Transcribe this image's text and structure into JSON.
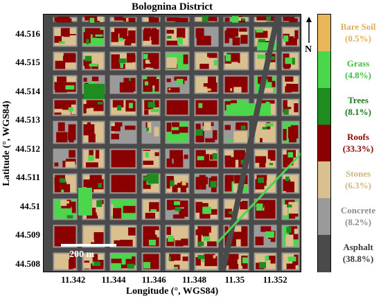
{
  "title": "Bolognina District",
  "xlabel": "Longitude (°, WGS84)",
  "ylabel": "Latitude (°, WGS84)",
  "lon_ticks": [
    "11.342",
    "11.344",
    "11.346",
    "11.348",
    "11.35",
    "11.352"
  ],
  "lat_ticks": [
    "44.516",
    "44.515",
    "44.514",
    "44.513",
    "44.512",
    "44.511",
    "44.51",
    "44.509",
    "44.508"
  ],
  "lon_tick_values": [
    11.342,
    11.344,
    11.346,
    11.348,
    11.35,
    11.352
  ],
  "lat_tick_values": [
    44.516,
    44.515,
    44.514,
    44.513,
    44.512,
    44.511,
    44.51,
    44.509,
    44.508
  ],
  "lon_range": [
    11.3405,
    11.3533
  ],
  "lat_range": [
    44.5167,
    44.5077
  ],
  "north_label": "N",
  "scale_label": "200 m",
  "legend": [
    {
      "name": "Bare Soil",
      "percent": "(0.5%)",
      "color": "#e8b75a",
      "text_color": "#e0b050"
    },
    {
      "name": "Grass",
      "percent": "(4.8%)",
      "color": "#4cd64c",
      "text_color": "#3fbf3f"
    },
    {
      "name": "Trees",
      "percent": "(8.1%)",
      "color": "#1f8c1f",
      "text_color": "#1a7a1a"
    },
    {
      "name": "Roofs",
      "percent": "(33.3%)",
      "color": "#8b0000",
      "text_color": "#8b0000"
    },
    {
      "name": "Stones",
      "percent": "(6.3%)",
      "color": "#d9c08e",
      "text_color": "#d2b580"
    },
    {
      "name": "Concrete",
      "percent": "(8.2%)",
      "color": "#9a9a9a",
      "text_color": "#8c8c8c"
    },
    {
      "name": "Asphalt",
      "percent": "(38.8%)",
      "color": "#4a4a4a",
      "text_color": "#3a3a3a"
    }
  ]
}
